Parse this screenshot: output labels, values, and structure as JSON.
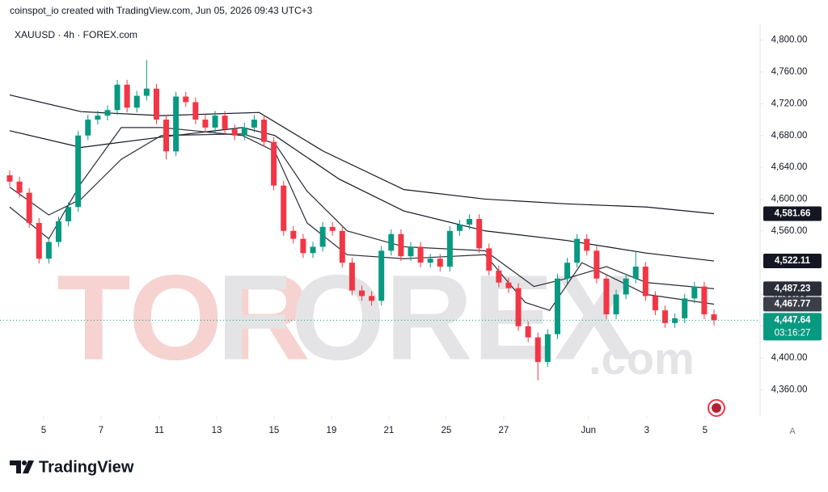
{
  "header": {
    "attribution": "coinspot_io created with TradingView.com, Jun 05, 2026 09:43 UTC+3",
    "symbol": "XAUUSD · 4h · FOREX.com"
  },
  "watermark": {
    "part1": "TOR",
    "part2": "FOREX",
    "part3": ".com"
  },
  "footer": {
    "brand": "TradingView"
  },
  "button": "A",
  "chart_data": {
    "type": "candlestick",
    "x": [
      0,
      1,
      2,
      3,
      4,
      5,
      6,
      7,
      8,
      9,
      10,
      11,
      12,
      13,
      14,
      15,
      16,
      17,
      18,
      19,
      20,
      21,
      22,
      23,
      24,
      25,
      26,
      27,
      28,
      29,
      30,
      31,
      32,
      33,
      34,
      35,
      36,
      37,
      38,
      39,
      40,
      41,
      42,
      43,
      44,
      45,
      46,
      47,
      48,
      49,
      50,
      51,
      52,
      53,
      54,
      55,
      56,
      57,
      58,
      59,
      60,
      61,
      62,
      63,
      64,
      65,
      66,
      67,
      68,
      69,
      70,
      71,
      72
    ],
    "open": [
      4630,
      4622,
      4608,
      4570,
      4525,
      4546,
      4572,
      4590,
      4680,
      4700,
      4705,
      4712,
      4744,
      4715,
      4730,
      4739,
      4700,
      4660,
      4729,
      4722,
      4700,
      4690,
      4705,
      4688,
      4680,
      4690,
      4700,
      4672,
      4617,
      4560,
      4550,
      4532,
      4540,
      4565,
      4560,
      4520,
      4485,
      4478,
      4472,
      4535,
      4556,
      4528,
      4540,
      4520,
      4525,
      4515,
      4560,
      4568,
      4575,
      4538,
      4510,
      4495,
      4488,
      4440,
      4426,
      4395,
      4430,
      4500,
      4520,
      4550,
      4535,
      4500,
      4455,
      4480,
      4500,
      4515,
      4478,
      4460,
      4444,
      4450,
      4475,
      4490,
      4455
    ],
    "high": [
      4636,
      4628,
      4614,
      4576,
      4552,
      4578,
      4596,
      4686,
      4706,
      4711,
      4718,
      4750,
      4750,
      4736,
      4775,
      4745,
      4706,
      4735,
      4735,
      4728,
      4706,
      4711,
      4711,
      4694,
      4696,
      4706,
      4706,
      4678,
      4623,
      4566,
      4556,
      4546,
      4571,
      4571,
      4566,
      4526,
      4491,
      4484,
      4541,
      4562,
      4562,
      4546,
      4546,
      4531,
      4531,
      4566,
      4574,
      4581,
      4581,
      4544,
      4516,
      4501,
      4494,
      4446,
      4432,
      4436,
      4506,
      4526,
      4556,
      4556,
      4541,
      4506,
      4486,
      4506,
      4535,
      4521,
      4484,
      4466,
      4456,
      4481,
      4496,
      4496,
      4461
    ],
    "low": [
      4616,
      4602,
      4564,
      4519,
      4519,
      4540,
      4566,
      4584,
      4674,
      4694,
      4699,
      4706,
      4709,
      4709,
      4724,
      4694,
      4650,
      4654,
      4716,
      4694,
      4684,
      4684,
      4682,
      4674,
      4674,
      4684,
      4666,
      4611,
      4554,
      4544,
      4526,
      4526,
      4534,
      4554,
      4514,
      4479,
      4472,
      4466,
      4466,
      4529,
      4522,
      4522,
      4514,
      4514,
      4509,
      4509,
      4554,
      4562,
      4532,
      4504,
      4489,
      4482,
      4434,
      4420,
      4372,
      4389,
      4424,
      4494,
      4514,
      4529,
      4494,
      4449,
      4449,
      4474,
      4494,
      4472,
      4454,
      4438,
      4438,
      4444,
      4469,
      4449,
      4441
    ],
    "close": [
      4622,
      4608,
      4570,
      4525,
      4546,
      4572,
      4590,
      4680,
      4700,
      4705,
      4712,
      4744,
      4715,
      4730,
      4739,
      4700,
      4660,
      4729,
      4722,
      4700,
      4690,
      4705,
      4688,
      4680,
      4690,
      4700,
      4672,
      4617,
      4560,
      4550,
      4532,
      4540,
      4565,
      4560,
      4520,
      4485,
      4478,
      4472,
      4535,
      4556,
      4528,
      4540,
      4520,
      4525,
      4515,
      4560,
      4568,
      4575,
      4538,
      4510,
      4495,
      4488,
      4440,
      4426,
      4395,
      4430,
      4500,
      4520,
      4550,
      4535,
      4500,
      4455,
      4480,
      4500,
      4515,
      4478,
      4460,
      4444,
      4450,
      4475,
      4490,
      4455,
      4447.64
    ],
    "up_color": "#089981",
    "down_color": "#f23645",
    "lines": [
      {
        "color": "#131722",
        "x": [
          0,
          7.3,
          15.5,
          25.5,
          32.1,
          40.3,
          48.6,
          56.9,
          65.1,
          72
        ],
        "values": [
          4731,
          4710,
          4705,
          4709,
          4660,
          4612,
          4600,
          4594,
          4590,
          4581.66
        ]
      },
      {
        "color": "#131722",
        "x": [
          0,
          7.3,
          15.5,
          23.8,
          27.1,
          33.7,
          40.3,
          48.6,
          56.9,
          65.1,
          72
        ],
        "values": [
          4686,
          4665,
          4678,
          4690,
          4680,
          4625,
          4585,
          4560,
          4548,
          4532,
          4522.11
        ]
      },
      {
        "color": "#2a2e39",
        "x": [
          0,
          4,
          7.3,
          11.4,
          15.5,
          23.8,
          27.1,
          30.4,
          34.5,
          40.3,
          48.6,
          53.6,
          56.9,
          61,
          65.1,
          72
        ],
        "values": [
          4615,
          4580,
          4600,
          4650,
          4680,
          4682,
          4670,
          4610,
          4560,
          4540,
          4535,
          4490,
          4500,
          4515,
          4495,
          4487.23
        ]
      },
      {
        "color": "#2a2e39",
        "x": [
          0,
          4,
          7.3,
          11.4,
          15.5,
          23.8,
          27.1,
          30.4,
          34.5,
          40.3,
          48.6,
          52.7,
          55.2,
          58.5,
          61.8,
          65.1,
          72
        ],
        "values": [
          4590,
          4550,
          4620,
          4690,
          4690,
          4680,
          4660,
          4570,
          4530,
          4525,
          4530,
          4470,
          4460,
          4520,
          4500,
          4480,
          4467.77
        ]
      }
    ],
    "price_labels": [
      {
        "value": 4581.66,
        "label": "4,581.66",
        "color": "#131722"
      },
      {
        "value": 4522.11,
        "label": "4,522.11",
        "color": "#131722"
      },
      {
        "value": 4487.23,
        "label": "4,487.23",
        "color": "#2a2e39"
      },
      {
        "value": 4467.77,
        "label": "4,467.77",
        "color": "#3b3f4a"
      },
      {
        "value": 4447.64,
        "label": "4,447.64",
        "color": "#089981"
      }
    ],
    "countdown": "03:16:27",
    "xlim": [
      -0.99,
      76.71
    ],
    "ylim": [
      4327,
      4820
    ],
    "yticks": [
      {
        "value": 4360,
        "label": "4,360.00"
      },
      {
        "value": 4400,
        "label": "4,400.00"
      },
      {
        "value": 4440,
        "label": "4,440.00"
      },
      {
        "value": 4480,
        "label": "4,480.00"
      },
      {
        "value": 4520,
        "label": "4,520.00"
      },
      {
        "value": 4560,
        "label": "4,560.00"
      },
      {
        "value": 4600,
        "label": "4,600.00"
      },
      {
        "value": 4640,
        "label": "4,640.00"
      },
      {
        "value": 4680,
        "label": "4,680.00"
      },
      {
        "value": 4720,
        "label": "4,720.00"
      },
      {
        "value": 4760,
        "label": "4,760.00"
      },
      {
        "value": 4800,
        "label": "4,800.00"
      }
    ],
    "xticks": [
      {
        "value": 3.47,
        "label": "5"
      },
      {
        "value": 9.34,
        "label": "7"
      },
      {
        "value": 15.29,
        "label": "11"
      },
      {
        "value": 21.16,
        "label": "13"
      },
      {
        "value": 27.02,
        "label": "15"
      },
      {
        "value": 32.89,
        "label": "19"
      },
      {
        "value": 38.76,
        "label": "21"
      },
      {
        "value": 44.63,
        "label": "25"
      },
      {
        "value": 50.5,
        "label": "27"
      },
      {
        "value": 59.17,
        "label": "Jun"
      },
      {
        "value": 65.12,
        "label": "3"
      },
      {
        "value": 71.07,
        "label": "5"
      }
    ]
  }
}
